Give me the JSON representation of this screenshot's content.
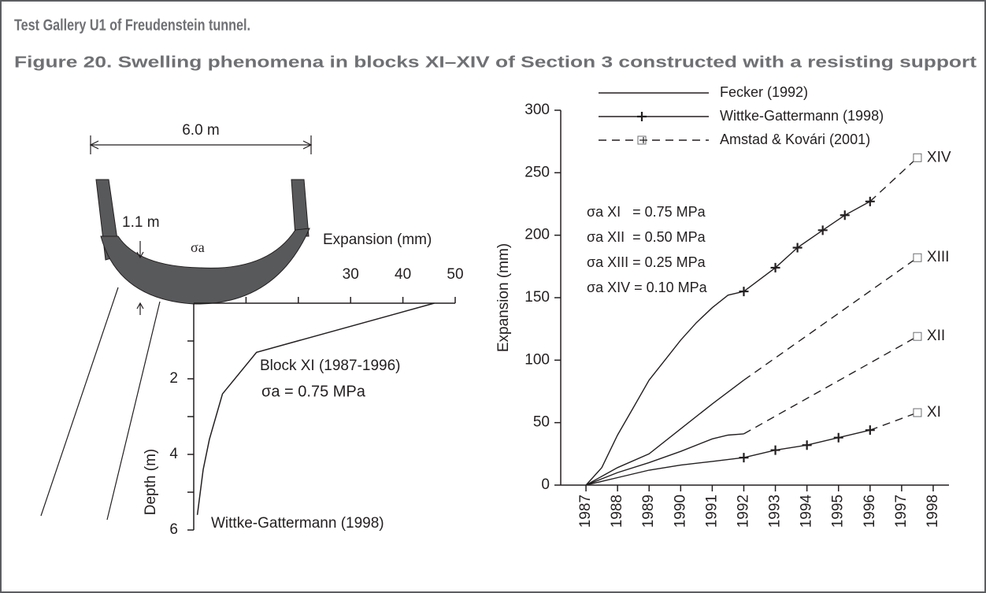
{
  "header": {
    "title": "Test Gallery U1 of Freudenstein tunnel.",
    "caption": "Figure 20. Swelling phenomena in blocks XI–XIV of Section 3 constructed with a resisting support"
  },
  "diagram": {
    "width_label": "6.0 m",
    "thickness_label": "1.1 m",
    "pressure_label": "σa"
  },
  "chart_data": [
    {
      "type": "line",
      "x_label": "Expansion (mm)",
      "y_label": "Depth (m)",
      "xlim": [
        0,
        50
      ],
      "ylim": [
        0,
        6
      ],
      "y_inverted": true,
      "xticks": [
        {
          "value": 10,
          "label": null
        },
        {
          "value": 20,
          "label": null
        },
        30,
        40,
        50
      ],
      "yticks": [
        {
          "value": 1,
          "label": null
        },
        2,
        {
          "value": 3,
          "label": null
        },
        4,
        {
          "value": 5,
          "label": null
        },
        6
      ],
      "series": [
        {
          "name": "Wittke-Gattermann (1998)",
          "color": "#231f20",
          "x": [
            46,
            12,
            5.5,
            3,
            1.8,
            0.7
          ],
          "values": [
            0,
            1.3,
            2.4,
            3.6,
            4.4,
            5.6
          ]
        }
      ],
      "annotations": [
        "Block XI (1987-1996)",
        "σa = 0.75 MPa"
      ]
    },
    {
      "type": "line",
      "y_label": "Expansion (mm)",
      "xlim": [
        1986.2,
        1998.5
      ],
      "ylim": [
        0,
        300
      ],
      "xticks": [
        1987,
        1988,
        1989,
        1990,
        1991,
        1992,
        1993,
        1994,
        1995,
        1996,
        1997,
        1998
      ],
      "yticks": [
        0,
        50,
        100,
        150,
        200,
        250,
        300
      ],
      "series": [
        {
          "name": "Fecker (1992)",
          "color": "#231f20",
          "style": "solid",
          "marker": null,
          "curves": [
            {
              "x": [
                1987,
                1988,
                1989,
                1990,
                1991,
                1992
              ],
              "values": [
                0,
                6,
                12,
                16,
                19,
                22
              ]
            },
            {
              "x": [
                1987,
                1988,
                1989,
                1990,
                1991,
                1991.5,
                1992
              ],
              "values": [
                0,
                10,
                18,
                27,
                37,
                40,
                41
              ]
            },
            {
              "x": [
                1987,
                1988,
                1989,
                1990,
                1991,
                1992
              ],
              "values": [
                0,
                14,
                25,
                45,
                65,
                84
              ]
            },
            {
              "x": [
                1987,
                1987.5,
                1988,
                1988.5,
                1989,
                1989.5,
                1990,
                1990.5,
                1991,
                1991.5,
                1992
              ],
              "values": [
                0,
                14,
                40,
                62,
                84,
                100,
                116,
                130,
                142,
                152,
                155
              ]
            }
          ]
        },
        {
          "name": "Wittke-Gattermann (1998)",
          "color": "#231f20",
          "style": "solid",
          "marker": "plus",
          "curves": [
            {
              "x": [
                1992,
                1993,
                1994,
                1995,
                1996
              ],
              "values": [
                22,
                28,
                32,
                38,
                44
              ]
            },
            {
              "x": [
                1992,
                1993,
                1993.7,
                1994.5,
                1995.2,
                1996
              ],
              "values": [
                155,
                174,
                190,
                204,
                216,
                227
              ]
            }
          ]
        },
        {
          "name": "Amstad & Kovári (2001)",
          "color": "#231f20",
          "style": "dashed",
          "marker": "square-end",
          "curves": [
            {
              "x": [
                1996,
                1997.5
              ],
              "values": [
                44,
                58
              ]
            },
            {
              "x": [
                1992,
                1997.5
              ],
              "values": [
                41,
                119
              ]
            },
            {
              "x": [
                1992,
                1997.5
              ],
              "values": [
                84,
                182
              ]
            },
            {
              "x": [
                1996,
                1997.5
              ],
              "values": [
                227,
                262
              ]
            }
          ]
        }
      ],
      "curve_labels": [
        "XI",
        "XII",
        "XIII",
        "XIV"
      ],
      "annotations": [
        "σa XI   = 0.75 MPa",
        "σa XII  = 0.50 MPa",
        "σa XIII = 0.25 MPa",
        "σa XIV = 0.10 MPa"
      ]
    }
  ]
}
